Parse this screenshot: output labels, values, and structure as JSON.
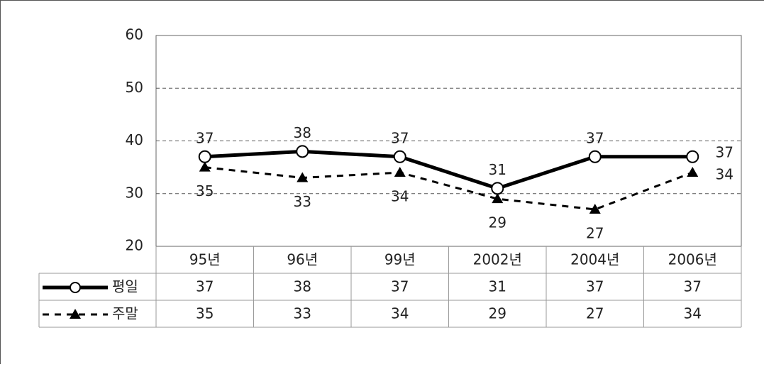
{
  "chart_data": {
    "type": "line",
    "categories": [
      "95년",
      "96년",
      "99년",
      "2002년",
      "2004년",
      "2006년"
    ],
    "series": [
      {
        "name": "평일",
        "color": "#000000",
        "values": [
          37,
          38,
          37,
          31,
          37,
          37
        ]
      },
      {
        "name": "주말",
        "color": "#000000",
        "values": [
          35,
          33,
          34,
          29,
          27,
          34
        ]
      }
    ],
    "ylim": [
      20,
      60
    ],
    "yticks": [
      20,
      30,
      40,
      50,
      60
    ],
    "grid": true
  }
}
